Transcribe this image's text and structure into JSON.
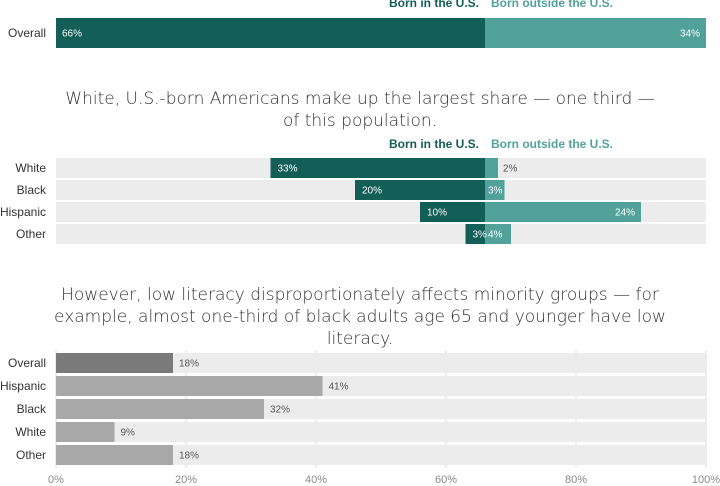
{
  "colors": {
    "born_us": "#135e57",
    "born_outside": "#52a29b",
    "track": "#ececec",
    "overall_gray": "#7a7a7a",
    "group_gray": "#a8a8a8",
    "text": "#333333",
    "axis_text": "#8a8a8a"
  },
  "captions": {
    "middle": "White, U.S.-born Americans make up the largest share — one third — of this population.",
    "bottom": "However, low literacy disproportionately affects minority groups — for example, almost one-third of black adults age 65 and younger have low literacy."
  },
  "legend": {
    "born_us": "Born in the U.S.",
    "born_outside": "Born outside the U.S."
  },
  "chart_data": [
    {
      "type": "bar",
      "orientation": "horizontal",
      "stacked": true,
      "categories": [
        "Overall"
      ],
      "series": [
        {
          "name": "Born in the U.S.",
          "values": [
            66
          ],
          "labels": [
            "66%"
          ]
        },
        {
          "name": "Born outside the U.S.",
          "values": [
            34
          ],
          "labels": [
            "34%"
          ]
        }
      ],
      "xlim": [
        0,
        100
      ],
      "legend_position": "top"
    },
    {
      "type": "bar",
      "orientation": "horizontal",
      "diverging_from": 66,
      "categories": [
        "White",
        "Black",
        "Hispanic",
        "Other"
      ],
      "series": [
        {
          "name": "Born in the U.S.",
          "values": [
            33,
            20,
            10,
            3
          ],
          "labels": [
            "33%",
            "20%",
            "10%",
            "3%"
          ]
        },
        {
          "name": "Born outside the U.S.",
          "values": [
            2,
            3,
            24,
            4
          ],
          "labels": [
            "2%",
            "3%",
            "24%",
            "4%"
          ]
        }
      ],
      "xlim": [
        0,
        100
      ],
      "legend_position": "top"
    },
    {
      "type": "bar",
      "orientation": "horizontal",
      "categories": [
        "Overall",
        "Hispanic",
        "Black",
        "White",
        "Other"
      ],
      "values": [
        18,
        41,
        32,
        9,
        18
      ],
      "labels": [
        "18%",
        "41%",
        "32%",
        "9%",
        "18%"
      ],
      "xlim": [
        0,
        100
      ],
      "xticks": [
        "0%",
        "20%",
        "40%",
        "60%",
        "80%",
        "100%"
      ],
      "grid": true
    }
  ]
}
